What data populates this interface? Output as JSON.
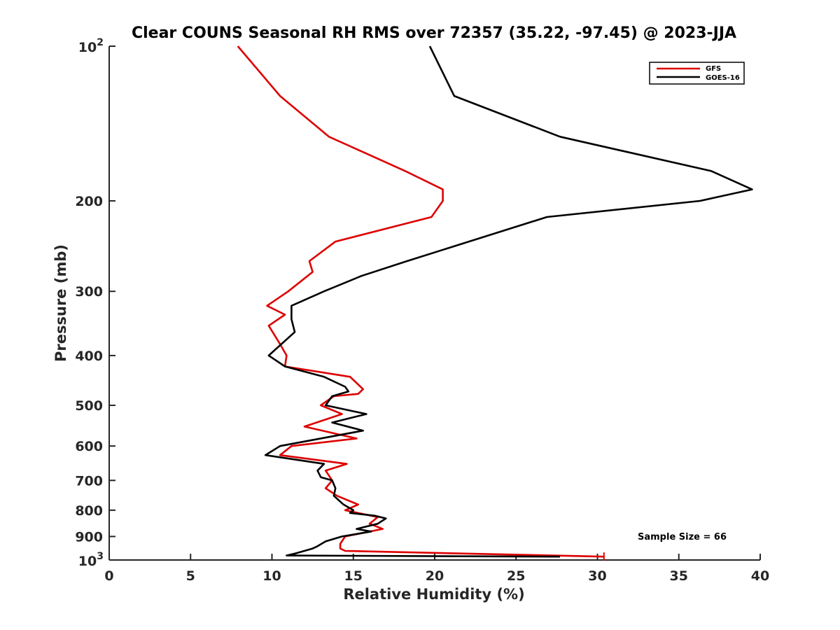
{
  "chart_data": {
    "type": "line",
    "title": "Clear COUNS Seasonal RH RMS over 72357 (35.22, -97.45) @ 2023-JJA",
    "xlabel": "Relative Humidity (%)",
    "ylabel": "Pressure (mb)",
    "xlim": [
      0,
      40
    ],
    "ylim": [
      100,
      1000
    ],
    "y_scale": "log",
    "y_reversed": true,
    "x_ticks": [
      0,
      5,
      10,
      15,
      20,
      25,
      30,
      35,
      40
    ],
    "x_tick_labels": [
      "0",
      "5",
      "10",
      "15",
      "20",
      "25",
      "30",
      "35",
      "40"
    ],
    "y_ticks": [
      100,
      200,
      300,
      400,
      500,
      600,
      700,
      800,
      900,
      1000
    ],
    "y_tick_labels": [
      "",
      "200",
      "300",
      "400",
      "500",
      "600",
      "700",
      "800",
      "900",
      ""
    ],
    "y_tick_label_top": {
      "base": "10",
      "exp": "2"
    },
    "y_tick_label_bottom": {
      "base": "10",
      "exp": "3"
    },
    "grid": false,
    "legend_position": "top-right",
    "annotation": "Sample Size = 66",
    "series": [
      {
        "name": "GFS",
        "color": "#dd0000",
        "points": [
          [
            7.9,
            100
          ],
          [
            10.5,
            125
          ],
          [
            13.5,
            150
          ],
          [
            18.2,
            175
          ],
          [
            20.5,
            190
          ],
          [
            20.5,
            200
          ],
          [
            19.8,
            215
          ],
          [
            13.9,
            240
          ],
          [
            12.3,
            262
          ],
          [
            12.5,
            275
          ],
          [
            11.0,
            300
          ],
          [
            9.7,
            320
          ],
          [
            10.8,
            333
          ],
          [
            9.8,
            350
          ],
          [
            10.5,
            380
          ],
          [
            10.9,
            400
          ],
          [
            10.8,
            420
          ],
          [
            14.8,
            440
          ],
          [
            15.6,
            465
          ],
          [
            15.3,
            475
          ],
          [
            13.8,
            480
          ],
          [
            13.0,
            500
          ],
          [
            14.3,
            520
          ],
          [
            12.0,
            550
          ],
          [
            15.2,
            580
          ],
          [
            11.2,
            600
          ],
          [
            10.5,
            625
          ],
          [
            14.6,
            650
          ],
          [
            13.3,
            670
          ],
          [
            13.7,
            700
          ],
          [
            13.3,
            725
          ],
          [
            14.0,
            750
          ],
          [
            15.3,
            780
          ],
          [
            14.5,
            800
          ],
          [
            16.5,
            825
          ],
          [
            16.0,
            850
          ],
          [
            16.8,
            870
          ],
          [
            14.5,
            900
          ],
          [
            14.2,
            930
          ],
          [
            14.2,
            950
          ],
          [
            14.5,
            960
          ],
          [
            30.4,
            985
          ]
        ]
      },
      {
        "name": "GOES-16",
        "color": "#000000",
        "points": [
          [
            19.7,
            100
          ],
          [
            21.2,
            125
          ],
          [
            27.7,
            150
          ],
          [
            37.0,
            175
          ],
          [
            39.5,
            190
          ],
          [
            36.3,
            200
          ],
          [
            26.9,
            215
          ],
          [
            18.3,
            262
          ],
          [
            15.5,
            280
          ],
          [
            13.2,
            300
          ],
          [
            11.2,
            320
          ],
          [
            11.2,
            340
          ],
          [
            11.4,
            360
          ],
          [
            9.8,
            400
          ],
          [
            10.8,
            420
          ],
          [
            13.2,
            440
          ],
          [
            14.5,
            460
          ],
          [
            14.7,
            470
          ],
          [
            13.7,
            480
          ],
          [
            13.3,
            500
          ],
          [
            15.8,
            520
          ],
          [
            13.7,
            540
          ],
          [
            15.6,
            560
          ],
          [
            10.5,
            600
          ],
          [
            9.6,
            625
          ],
          [
            13.2,
            650
          ],
          [
            12.8,
            670
          ],
          [
            13.0,
            690
          ],
          [
            13.7,
            700
          ],
          [
            13.9,
            725
          ],
          [
            13.8,
            750
          ],
          [
            14.4,
            780
          ],
          [
            15.0,
            800
          ],
          [
            14.8,
            810
          ],
          [
            16.3,
            820
          ],
          [
            17.0,
            830
          ],
          [
            16.5,
            850
          ],
          [
            15.2,
            870
          ],
          [
            16.1,
            880
          ],
          [
            14.3,
            900
          ],
          [
            13.3,
            920
          ],
          [
            12.8,
            940
          ],
          [
            12.5,
            950
          ],
          [
            11.5,
            970
          ],
          [
            10.9,
            980
          ],
          [
            27.7,
            985
          ]
        ]
      }
    ]
  }
}
